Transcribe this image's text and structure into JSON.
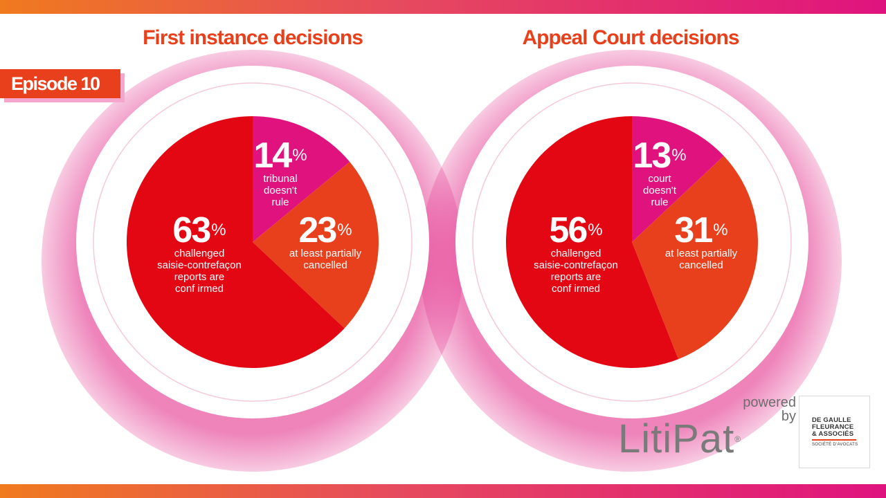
{
  "episode_label": "Episode 10",
  "colors": {
    "orange": "#e8401c",
    "pink": "#e0137e",
    "red": "#e30613",
    "title": "#e8401c"
  },
  "branding": {
    "powered_by": "powered by",
    "product": "LitiPat",
    "registered_mark": "®",
    "firm_lines": [
      "DE GAULLE",
      "FLEURANCE",
      "& ASSOCIÉS"
    ],
    "firm_subtitle": "SOCIÉTÉ D'AVOCATS"
  },
  "chart_data": [
    {
      "type": "pie",
      "title": "First instance decisions",
      "slices": [
        {
          "value": 14,
          "display": "14",
          "unit": "%",
          "label": "tribunal doesn't rule",
          "label_lines": [
            "tribunal",
            "doesn't",
            "rule"
          ],
          "color": "#e0137e"
        },
        {
          "value": 23,
          "display": "23",
          "unit": "%",
          "label": "at least partially cancelled",
          "label_lines": [
            "at least partially",
            "cancelled"
          ],
          "color": "#e8401c"
        },
        {
          "value": 63,
          "display": "63",
          "unit": "%",
          "label": "challenged saisie-contrefaçon reports are confirmed",
          "label_lines": [
            "challenged",
            "saisie-contrefaçon",
            "reports are",
            "conf irmed"
          ],
          "color": "#e30613"
        }
      ]
    },
    {
      "type": "pie",
      "title": "Appeal Court decisions",
      "slices": [
        {
          "value": 13,
          "display": "13",
          "unit": "%",
          "label": "court doesn't rule",
          "label_lines": [
            "court",
            "doesn't",
            "rule"
          ],
          "color": "#e0137e"
        },
        {
          "value": 31,
          "display": "31",
          "unit": "%",
          "label": "at least partially cancelled",
          "label_lines": [
            "at least partially",
            "cancelled"
          ],
          "color": "#e8401c"
        },
        {
          "value": 56,
          "display": "56",
          "unit": "%",
          "label": "challenged saisie-contrefaçon reports are confirmed",
          "label_lines": [
            "challenged",
            "saisie-contrefaçon",
            "reports are",
            "conf irmed"
          ],
          "color": "#e30613"
        }
      ]
    }
  ]
}
